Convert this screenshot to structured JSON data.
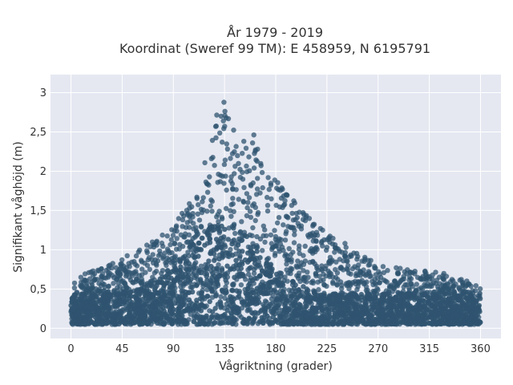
{
  "chart_data": {
    "type": "scatter",
    "title_line1": "År 1979 - 2019",
    "title_line2": "Koordinat (Sweref 99 TM): E 458959, N 6195791",
    "xlabel": "Vågriktning (grader)",
    "ylabel": "Signifikant våghöjd (m)",
    "xlim": [
      -18,
      378
    ],
    "ylim": [
      -0.13,
      3.23
    ],
    "x_ticks": [
      0,
      45,
      90,
      135,
      180,
      225,
      270,
      315,
      360
    ],
    "x_tick_labels": [
      "0",
      "45",
      "90",
      "135",
      "180",
      "225",
      "270",
      "315",
      "360"
    ],
    "y_ticks": [
      0,
      0.5,
      1,
      1.5,
      2,
      2.5,
      3
    ],
    "y_tick_labels": [
      "0",
      "0,5",
      "1",
      "1,5",
      "2",
      "2,5",
      "3"
    ],
    "grid": true,
    "marker_color": "#2f5470",
    "background_color": "#e5e8f1",
    "envelope": {
      "x": [
        0,
        20,
        45,
        60,
        90,
        110,
        125,
        130,
        135,
        145,
        160,
        175,
        190,
        210,
        225,
        245,
        270,
        300,
        330,
        360
      ],
      "y_max": [
        0.6,
        0.75,
        0.9,
        1.0,
        1.3,
        1.75,
        2.6,
        2.9,
        3.05,
        2.4,
        2.5,
        2.0,
        1.7,
        1.45,
        1.2,
        1.05,
        0.8,
        0.75,
        0.7,
        0.55
      ],
      "y_min": 0.05
    }
  }
}
